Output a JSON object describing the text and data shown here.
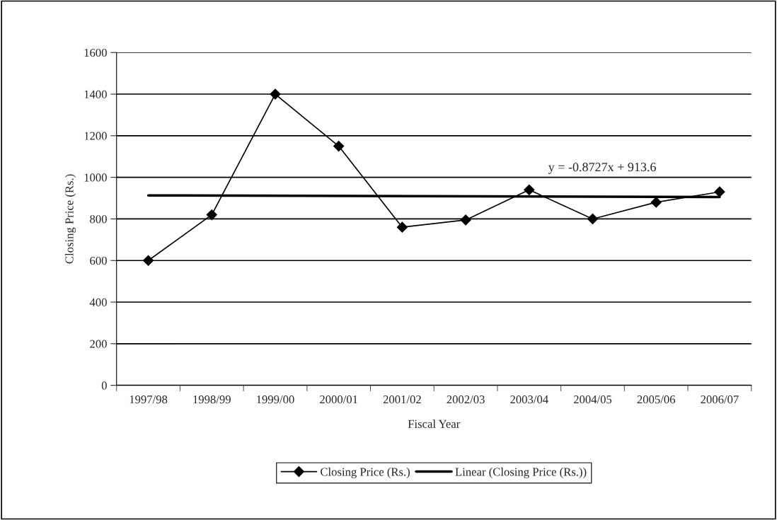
{
  "chart_data": {
    "type": "line",
    "xlabel": "Fiscal Year",
    "ylabel": "Closing Price (Rs.)",
    "categories": [
      "1997/98",
      "1998/99",
      "1999/00",
      "2000/01",
      "2001/02",
      "2002/03",
      "2003/04",
      "2004/05",
      "2005/06",
      "2006/07"
    ],
    "series": [
      {
        "name": "Closing Price (Rs.)",
        "color": "#000000",
        "marker": "diamond",
        "values": [
          600,
          820,
          1400,
          1150,
          760,
          795,
          940,
          800,
          880,
          930
        ]
      },
      {
        "name": "Linear (Closing Price (Rs.))",
        "color": "#000000",
        "marker": "none",
        "x": [
          "1997/98",
          "2006/07"
        ],
        "values": [
          913,
          905
        ]
      }
    ],
    "ylim": [
      0,
      1600
    ],
    "yticks": [
      0,
      200,
      400,
      600,
      800,
      1000,
      1200,
      1400,
      1600
    ],
    "grid": "y",
    "legend": "bottom",
    "annotations": [
      "y = -0.8727x + 913.6"
    ]
  }
}
